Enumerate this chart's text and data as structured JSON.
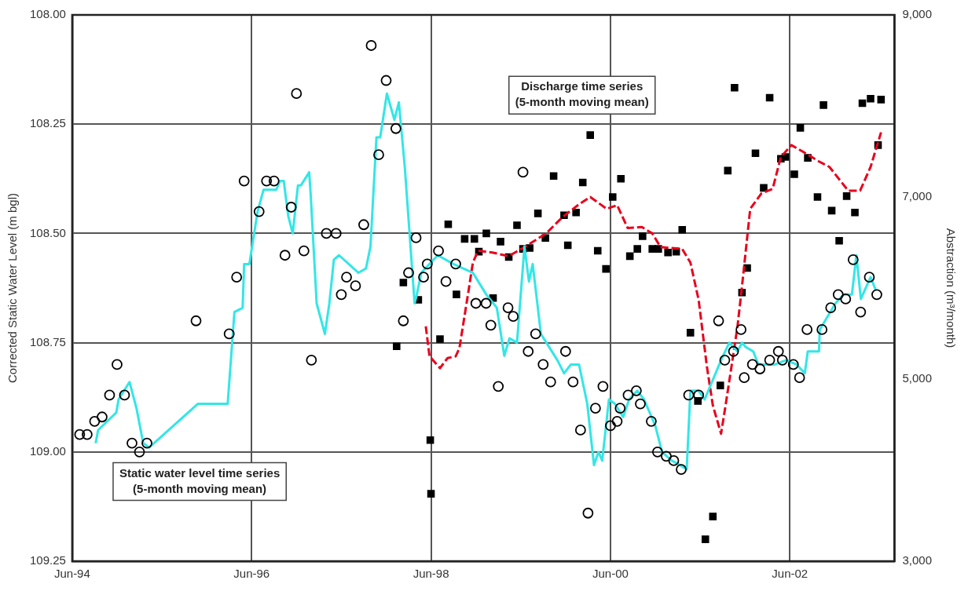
{
  "chart_data": {
    "type": "scatter",
    "ylabel": "Corrected Static Water Level (m bgl)",
    "y2label": "Abstraction (m³/month)",
    "annotations": [
      "Discharge time series\n(5-month moving mean)",
      "Static water level time series\n(5-month moving mean)"
    ],
    "xlim": [
      "1994-06",
      "2003-08"
    ],
    "xticks": [
      {
        "value": "1994-06",
        "label": "Jun-94"
      },
      {
        "value": "1996-06",
        "label": "Jun-96"
      },
      {
        "value": "1998-06",
        "label": "Jun-98"
      },
      {
        "value": "2000-06",
        "label": "Jun-00"
      },
      {
        "value": "2002-06",
        "label": "Jun-02"
      }
    ],
    "ylim": [
      109.25,
      108.0
    ],
    "yticks": [
      {
        "value": 108.0,
        "label": "108.00"
      },
      {
        "value": 108.25,
        "label": "108.25"
      },
      {
        "value": 108.5,
        "label": "108.50"
      },
      {
        "value": 108.75,
        "label": "108.75"
      },
      {
        "value": 109.0,
        "label": "109.00"
      },
      {
        "value": 109.25,
        "label": "109.25"
      }
    ],
    "y2lim": [
      3000,
      9000
    ],
    "y2ticks": [
      {
        "value": 3000,
        "label": "3,000"
      },
      {
        "value": 5000,
        "label": "5,000"
      },
      {
        "value": 7000,
        "label": "7,000"
      },
      {
        "value": 9000,
        "label": "9,000"
      }
    ],
    "grid": true,
    "series": [
      {
        "type": "scatter",
        "color": "#000000",
        "marker": "circle",
        "x": [
          "1994-07",
          "1994-08",
          "1994-09",
          "1994-10",
          "1994-11",
          "1994-12",
          "1995-01",
          "1995-02",
          "1995-03",
          "1995-04",
          "1995-10-18",
          "1996-03",
          "1996-04",
          "1996-05",
          "1996-07",
          "1996-08",
          "1996-09",
          "1996-10-15",
          "1996-11-10",
          "1996-12",
          "1997-01",
          "1997-02",
          "1997-04",
          "1997-05-10",
          "1997-06",
          "1997-06-22",
          "1997-07-28",
          "1997-09",
          "1997-10",
          "1997-11",
          "1997-12",
          "1998-01-10",
          "1998-02-10",
          "1998-03",
          "1998-04",
          "1998-05",
          "1998-05-16",
          "1998-07",
          "1998-08",
          "1998-09-10",
          "1998-12",
          "1999-01-12",
          "1999-02",
          "1999-03",
          "1999-04-10",
          "1999-05",
          "1999-06-10",
          "1999-07",
          "1999-08",
          "1999-09",
          "1999-10",
          "1999-12",
          "2000-01",
          "2000-02",
          "2000-03",
          "2000-04",
          "2000-05",
          "2000-06",
          "2000-06-28",
          "2000-07-10",
          "2000-08-12",
          "2000-09-15",
          "2000-10",
          "2000-11-15",
          "2000-12-10",
          "2001-01-15",
          "2001-02-15",
          "2001-03-15",
          "2001-04-15",
          "2001-05-25",
          "2001-08-15",
          "2001-09-10",
          "2001-10-15",
          "2001-11-15",
          "2001-11-28",
          "2002-01",
          "2002-02",
          "2002-03-10",
          "2002-04-15",
          "2002-05",
          "2002-06-15",
          "2002-07-10",
          "2002-08-10",
          "2002-10-10",
          "2002-11-15",
          "2002-12-15",
          "2003-01-15",
          "2003-02-15",
          "2003-03-15",
          "2003-04-20",
          "2003-05-20"
        ],
        "values": [
          108.96,
          108.96,
          108.93,
          108.92,
          108.87,
          108.8,
          108.87,
          108.98,
          109.0,
          108.98,
          108.7,
          108.73,
          108.6,
          108.38,
          108.45,
          108.38,
          108.38,
          108.55,
          108.44,
          108.18,
          108.54,
          108.79,
          108.5,
          108.5,
          108.64,
          108.6,
          108.62,
          108.48,
          108.07,
          108.32,
          108.15,
          108.26,
          108.7,
          108.59,
          108.51,
          108.6,
          108.57,
          108.54,
          108.61,
          108.57,
          108.66,
          108.66,
          108.71,
          108.85,
          108.67,
          108.69,
          108.36,
          108.77,
          108.73,
          108.8,
          108.84,
          108.77,
          108.84,
          108.95,
          109.14,
          108.9,
          108.85,
          108.94,
          108.93,
          108.9,
          108.87,
          108.86,
          108.89,
          108.93,
          109.0,
          109.01,
          109.02,
          109.04,
          108.87,
          108.87,
          108.7,
          108.79,
          108.77,
          108.72,
          108.83,
          108.8,
          108.81,
          108.79,
          108.77,
          108.79,
          108.8,
          108.83,
          108.72,
          108.72,
          108.67,
          108.64,
          108.65,
          108.56,
          108.68,
          108.6,
          108.64
        ]
      },
      {
        "type": "scatter",
        "axis": "y2",
        "color": "#000000",
        "marker": "square",
        "x": [
          "1998-01-13",
          "1998-02-10",
          "1998-04-10",
          "1998-05-28",
          "1998-06-01",
          "1998-07-07",
          "1998-08-10",
          "1998-09-13",
          "1998-10-16",
          "1998-11-25",
          "1998-12-13",
          "1999-01-13",
          "1999-02-10",
          "1999-03-10",
          "1999-04-13",
          "1999-05-16",
          "1999-06-10",
          "1999-07-07",
          "1999-08-10",
          "1999-09-10",
          "1999-10-13",
          "1999-11-25",
          "1999-12-10",
          "2000-01-13",
          "2000-02-10",
          "2000-03-10",
          "2000-04-10",
          "2000-05-13",
          "2000-06-10",
          "2000-07-13",
          "2000-08-19",
          "2000-09-19",
          "2000-10-10",
          "2000-11-19",
          "2000-12-13",
          "2001-01-22",
          "2001-02-25",
          "2001-03-19",
          "2001-04-22",
          "2001-05-22",
          "2001-06-22",
          "2001-07-22",
          "2001-08-22",
          "2001-09-22",
          "2001-10-19",
          "2001-11-19",
          "2001-12-10",
          "2002-01-13",
          "2002-02-16",
          "2002-03-10",
          "2002-04-25",
          "2002-05-13",
          "2002-06-19",
          "2002-07-13",
          "2002-08-13",
          "2002-09-22",
          "2002-10-16",
          "2002-11-19",
          "2002-12-19",
          "2003-01-19",
          "2003-02-22",
          "2003-03-22",
          "2003-04-25",
          "2003-05-25",
          "2003-06-07"
        ],
        "values": [
          5360,
          6060,
          5870,
          4330,
          3740,
          5440,
          6700,
          5930,
          6540,
          6540,
          6400,
          6600,
          5890,
          6510,
          6340,
          6690,
          6430,
          6440,
          6820,
          6550,
          7230,
          6800,
          6470,
          6830,
          7160,
          7680,
          6410,
          6210,
          7000,
          7200,
          6350,
          6430,
          6570,
          6430,
          6430,
          6390,
          6400,
          6640,
          5510,
          4760,
          3240,
          3490,
          4930,
          7290,
          8200,
          5950,
          6220,
          7480,
          7100,
          8090,
          7420,
          7440,
          7250,
          7760,
          7430,
          7000,
          8010,
          6850,
          6520,
          7010,
          6830,
          8030,
          8080,
          7570,
          8070
        ]
      },
      {
        "type": "line",
        "color": "#33e6e6",
        "marker": "none",
        "line_style": "solid",
        "x": [
          "1994-09-05",
          "1994-09-15",
          "1994-11-28",
          "1994-12-07",
          "1995-01-21",
          "1995-02-19",
          "1995-03-16",
          "1995-04-10",
          "1995-10-25",
          "1996-02-25",
          "1996-03-22",
          "1996-04-25",
          "1996-05-01",
          "1996-05-22",
          "1996-06-25",
          "1996-07-19",
          "1996-09-10",
          "1996-09-25",
          "1996-10-10",
          "1996-10-28",
          "1996-11-16",
          "1996-12-07",
          "1996-12-19",
          "1997-01-22",
          "1997-01-28",
          "1997-02-22",
          "1997-03-25",
          "1997-04-13",
          "1997-05-01",
          "1997-05-22",
          "1997-08-10",
          "1997-09-10",
          "1997-09-28",
          "1997-10-22",
          "1997-11-07",
          "1997-12-04",
          "1998-01-04",
          "1998-01-22",
          "1998-02-16",
          "1998-03-25",
          "1998-04-04",
          "1998-04-22",
          "1998-05-25",
          "1998-06-28",
          "1998-09-01",
          "1998-11-19",
          "1999-01-13",
          "1999-02-25",
          "1999-03-25",
          "1999-04-16",
          "1999-05-16",
          "1999-06-16",
          "1999-07-04",
          "1999-07-19",
          "1999-08-22",
          "1999-09-25",
          "1999-10-28",
          "1999-11-25",
          "1999-12-22",
          "2000-01-25",
          "2000-02-28",
          "2000-03-25",
          "2000-04-13",
          "2000-04-28",
          "2000-05-25",
          "2000-06-19",
          "2000-07-22",
          "2000-08-16",
          "2000-09-19",
          "2000-10-16",
          "2000-12-01",
          "2000-12-28",
          "2001-02-07",
          "2001-03-10",
          "2001-04-07",
          "2001-04-22",
          "2001-05-25",
          "2001-06-19",
          "2001-08-25",
          "2001-09-28",
          "2001-11-01",
          "2001-11-19",
          "2001-12-04",
          "2002-01-04",
          "2002-01-25",
          "2002-04-01",
          "2002-05-16",
          "2002-06-28",
          "2002-08-01",
          "2002-08-13",
          "2002-09-28",
          "2002-10-01",
          "2002-12-04",
          "2003-01-07",
          "2003-02-10",
          "2003-02-28",
          "2003-03-16",
          "2003-04-25",
          "2003-05-16"
        ],
        "values": [
          108.98,
          108.95,
          108.91,
          108.88,
          108.84,
          108.9,
          108.98,
          108.99,
          108.89,
          108.89,
          108.68,
          108.67,
          108.57,
          108.57,
          108.45,
          108.4,
          108.4,
          108.38,
          108.38,
          108.46,
          108.5,
          108.39,
          108.39,
          108.36,
          108.41,
          108.66,
          108.73,
          108.66,
          108.56,
          108.55,
          108.59,
          108.58,
          108.53,
          108.28,
          108.28,
          108.18,
          108.24,
          108.2,
          108.35,
          108.66,
          108.64,
          108.59,
          108.57,
          108.55,
          108.57,
          108.59,
          108.64,
          108.67,
          108.78,
          108.74,
          108.75,
          108.53,
          108.61,
          108.57,
          108.73,
          108.76,
          108.79,
          108.82,
          108.8,
          108.8,
          108.89,
          109.03,
          109.0,
          109.02,
          108.88,
          108.89,
          108.92,
          108.88,
          108.86,
          108.88,
          108.94,
          109.0,
          109.02,
          109.03,
          109.04,
          108.86,
          108.86,
          108.88,
          108.79,
          108.75,
          108.77,
          108.75,
          108.76,
          108.77,
          108.8,
          108.8,
          108.79,
          108.8,
          108.82,
          108.77,
          108.77,
          108.72,
          108.66,
          108.64,
          108.64,
          108.55,
          108.65,
          108.6,
          108.63
        ]
      },
      {
        "type": "line",
        "axis": "y2",
        "color": "#e8001c",
        "marker": "none",
        "line_style": "dashed",
        "x": [
          "1998-05-10",
          "1998-05-25",
          "1998-07-07",
          "1998-08-07",
          "1998-09-10",
          "1998-09-25",
          "1998-11-01",
          "1998-11-19",
          "1998-12-10",
          "1999-02-07",
          "1999-04-13",
          "1999-06-16",
          "1999-09-13",
          "1999-11-19",
          "2000-01-25",
          "2000-03-10",
          "2000-05-16",
          "2000-06-28",
          "2000-08-10",
          "2000-10-07",
          "2000-11-19",
          "2000-12-22",
          "2001-03-19",
          "2001-04-22",
          "2001-05-25",
          "2001-06-28",
          "2001-07-22",
          "2001-08-25",
          "2001-09-13",
          "2001-10-07",
          "2001-11-01",
          "2001-11-19",
          "2001-12-22",
          "2002-02-07",
          "2002-03-22",
          "2002-04-25",
          "2002-06-07",
          "2002-07-22",
          "2002-09-28",
          "2002-11-10",
          "2003-01-25",
          "2003-03-13",
          "2003-04-25",
          "2003-06-07"
        ],
        "values": [
          5580,
          5250,
          5120,
          5230,
          5250,
          5340,
          5960,
          6280,
          6410,
          6390,
          6350,
          6450,
          6600,
          6780,
          6920,
          7000,
          6870,
          6910,
          6660,
          6670,
          6600,
          6450,
          6430,
          6280,
          5870,
          5140,
          4710,
          4400,
          4710,
          5140,
          5580,
          6020,
          6870,
          7040,
          7090,
          7440,
          7570,
          7500,
          7390,
          7330,
          7070,
          7070,
          7330,
          7710
        ]
      }
    ]
  }
}
